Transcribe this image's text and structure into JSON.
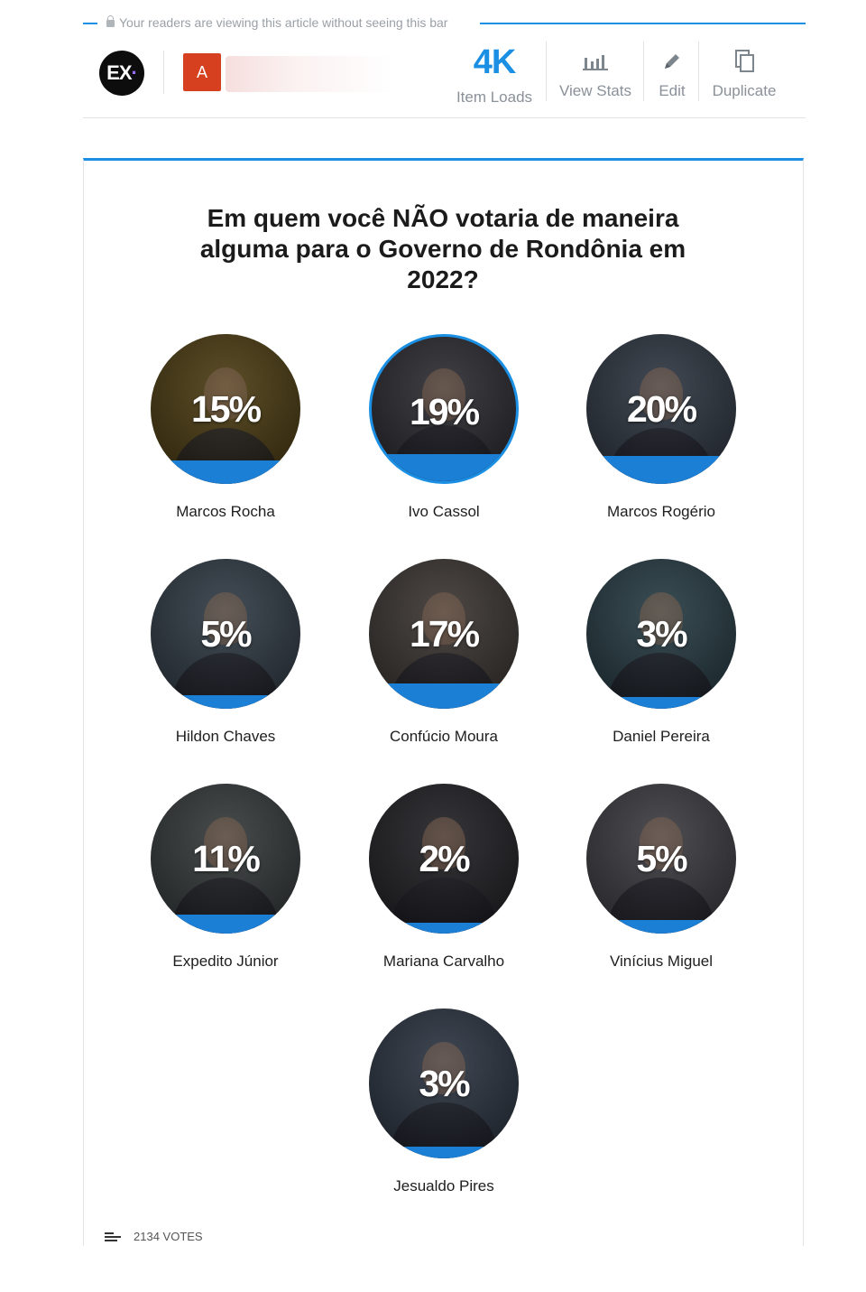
{
  "topbar": {
    "notice": "Your readers are viewing this article without seeing this bar",
    "logo_text": "EX",
    "logo_dot": "·",
    "avatar_letter": "A",
    "stats": {
      "loads_value": "4K",
      "loads_label": "Item Loads",
      "view_stats_label": "View Stats",
      "edit_label": "Edit",
      "duplicate_label": "Duplicate"
    }
  },
  "poll": {
    "question": "Em quem você NÃO votaria de maneira alguma para o Governo de Rondônia em 2022?",
    "selected_index": 1,
    "options": [
      {
        "name": "Marcos Rocha",
        "percent_label": "15%",
        "percent": 15,
        "tint": "#4a3a10"
      },
      {
        "name": "Ivo Cassol",
        "percent_label": "19%",
        "percent": 19,
        "tint": "#2a2a30"
      },
      {
        "name": "Marcos Rogério",
        "percent_label": "20%",
        "percent": 20,
        "tint": "#2d3540"
      },
      {
        "name": "Hildon Chaves",
        "percent_label": "5%",
        "percent": 5,
        "tint": "#2f3a44"
      },
      {
        "name": "Confúcio Moura",
        "percent_label": "17%",
        "percent": 17,
        "tint": "#3a3430"
      },
      {
        "name": "Daniel Pereira",
        "percent_label": "3%",
        "percent": 3,
        "tint": "#253a42"
      },
      {
        "name": "Expedito Júnior",
        "percent_label": "11%",
        "percent": 11,
        "tint": "#333838"
      },
      {
        "name": "Mariana Carvalho",
        "percent_label": "2%",
        "percent": 2,
        "tint": "#1f1e22"
      },
      {
        "name": "Vinícius Miguel",
        "percent_label": "5%",
        "percent": 5,
        "tint": "#3b3b40"
      },
      {
        "name": "Jesualdo Pires",
        "percent_label": "3%",
        "percent": 3,
        "tint": "#2a3340"
      }
    ],
    "votes_label": "2134 VOTES"
  },
  "colors": {
    "accent": "#1a8fe3",
    "bar": "#1c7fd6",
    "avatar": "#d7401f"
  }
}
